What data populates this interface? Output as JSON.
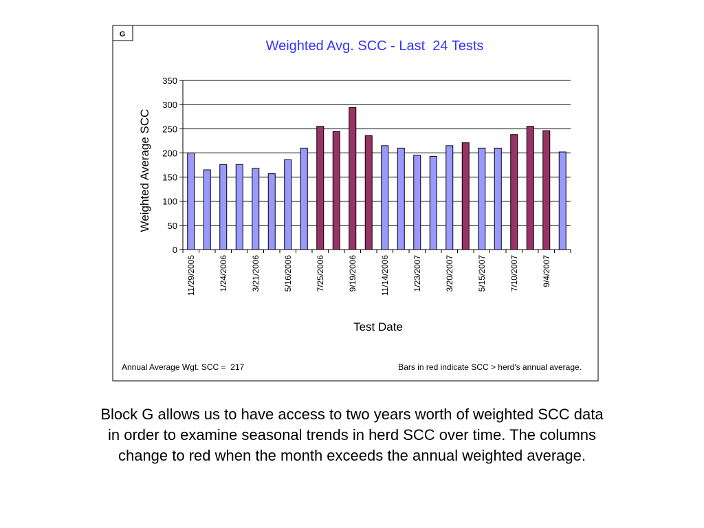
{
  "chart_data": {
    "type": "bar",
    "block_label": "G",
    "title": "Weighted Avg. SCC - Last  24 Tests",
    "xlabel": "Test Date",
    "ylabel": "Weighted Average SCC",
    "ylim": [
      0,
      350
    ],
    "yticks": [
      0,
      50,
      100,
      150,
      200,
      250,
      300,
      350
    ],
    "grid": true,
    "categories": [
      "11/29/2005",
      "",
      "1/24/2006",
      "",
      "3/21/2006",
      "",
      "5/16/2006",
      "",
      "7/25/2006",
      "",
      "9/19/2006",
      "",
      "11/14/2006",
      "",
      "1/23/2007",
      "",
      "3/20/2007",
      "",
      "5/15/2007",
      "",
      "7/10/2007",
      "",
      "9/4/2007",
      ""
    ],
    "values": [
      200,
      165,
      176,
      176,
      168,
      157,
      186,
      210,
      255,
      244,
      294,
      236,
      215,
      210,
      195,
      193,
      215,
      221,
      210,
      210,
      238,
      255,
      246,
      202
    ],
    "colors": {
      "below_average": "#9999ff",
      "above_average": "#993366",
      "title": "#3333ff"
    },
    "footer_left": "Annual Average Wgt. SCC =  217",
    "footer_right": "Bars in red indicate SCC > herd's annual average.",
    "annual_average": 217
  },
  "caption": {
    "lines": [
      "Block G allows us to have access to two years worth of weighted SCC data",
      "in order to examine seasonal trends in herd SCC over time. The columns",
      "change to red when the month exceeds the annual weighted average."
    ]
  }
}
